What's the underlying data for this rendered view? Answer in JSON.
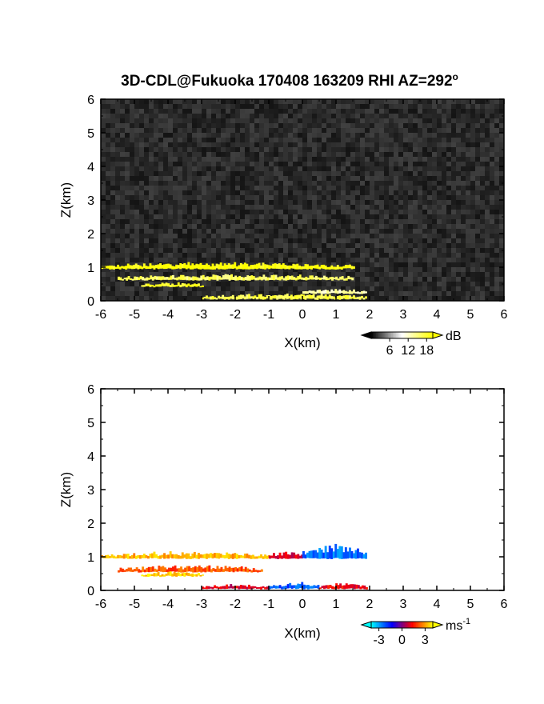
{
  "chart_data": [
    {
      "type": "heatmap",
      "title": "3D-CDL@Fukuoka 170408 163209 RHI AZ=292",
      "title_superscript": "o",
      "xlabel": "X(km)",
      "ylabel": "Z(km)",
      "xlim": [
        -6,
        6
      ],
      "ylim": [
        0,
        6
      ],
      "xticks": [
        "-6",
        "-5",
        "-4",
        "-3",
        "-2",
        "-1",
        "0",
        "1",
        "2",
        "3",
        "4",
        "5",
        "6"
      ],
      "yticks": [
        "0",
        "1",
        "2",
        "3",
        "4",
        "5",
        "6"
      ],
      "background": "#1e1e1e",
      "colorbar": {
        "unit": "dB",
        "ticks": [
          "6",
          "12",
          "18"
        ],
        "tick_values": [
          6,
          12,
          18
        ],
        "range": [
          0,
          20
        ],
        "colors": [
          "#000000",
          "#ffffff",
          "#ffff00"
        ]
      },
      "layers": [
        {
          "x0": -6.0,
          "x1": 1.5,
          "base": 0.95,
          "thick": 0.12,
          "value": 20
        },
        {
          "x0": -5.5,
          "x1": 1.5,
          "base": 0.62,
          "thick": 0.1,
          "value": 16
        },
        {
          "x0": -4.8,
          "x1": -3.0,
          "base": 0.42,
          "thick": 0.08,
          "value": 19
        },
        {
          "x0": -3.0,
          "x1": 1.9,
          "base": 0.05,
          "thick": 0.1,
          "value": 17
        },
        {
          "x0": 0.0,
          "x1": 1.9,
          "base": 0.22,
          "thick": 0.08,
          "value": 13
        }
      ]
    },
    {
      "type": "heatmap",
      "xlabel": "X(km)",
      "ylabel": "Z(km)",
      "xlim": [
        -6,
        6
      ],
      "ylim": [
        0,
        6
      ],
      "xticks": [
        "-6",
        "-5",
        "-4",
        "-3",
        "-2",
        "-1",
        "0",
        "1",
        "2",
        "3",
        "4",
        "5",
        "6"
      ],
      "yticks": [
        "0",
        "1",
        "2",
        "3",
        "4",
        "5",
        "6"
      ],
      "background": "#ffffff",
      "colorbar": {
        "unit": "ms",
        "unit_superscript": "-1",
        "ticks": [
          "-3",
          "0",
          "3"
        ],
        "tick_values": [
          -3,
          0,
          3
        ],
        "range": [
          -4,
          4
        ],
        "colors": [
          "#00ffff",
          "#0000ff",
          "#ff0000",
          "#ffff00"
        ]
      },
      "layers": [
        {
          "x0": -6.0,
          "x1": -1.0,
          "base": 0.95,
          "thick": 0.12,
          "value": 3.2
        },
        {
          "x0": -1.0,
          "x1": 0.0,
          "base": 0.95,
          "thick": 0.14,
          "value": 0.8
        },
        {
          "x0": 0.0,
          "x1": 1.9,
          "base": 0.95,
          "thick": 0.25,
          "value": -2.5
        },
        {
          "x0": -5.5,
          "x1": -1.2,
          "base": 0.55,
          "thick": 0.12,
          "value": 2.2
        },
        {
          "x0": -4.8,
          "x1": -3.0,
          "base": 0.42,
          "thick": 0.08,
          "value": 3.5
        },
        {
          "x0": -3.0,
          "x1": -1.0,
          "base": 0.05,
          "thick": 0.08,
          "value": 1.0
        },
        {
          "x0": -1.0,
          "x1": 0.5,
          "base": 0.05,
          "thick": 0.12,
          "value": -2.2
        },
        {
          "x0": 0.5,
          "x1": 1.9,
          "base": 0.05,
          "thick": 0.1,
          "value": 1.2
        }
      ]
    }
  ]
}
